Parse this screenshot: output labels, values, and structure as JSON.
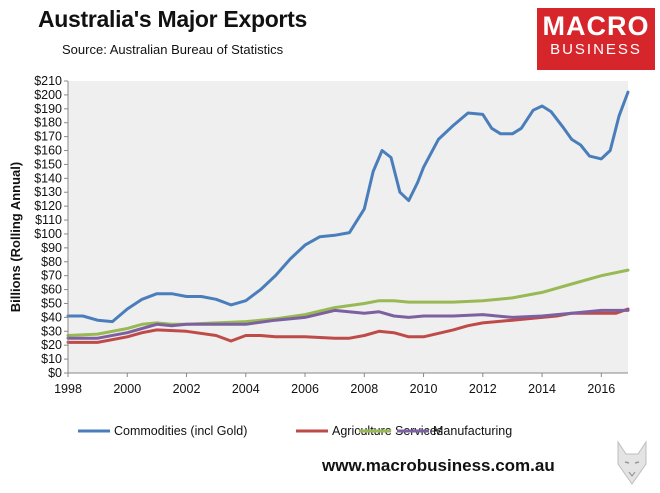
{
  "header": {
    "title": "Australia's Major Exports",
    "source": "Source: Australian Bureau of Statistics"
  },
  "logo": {
    "line1": "MACRO",
    "line2": "BUSINESS"
  },
  "footer": {
    "website": "www.macrobusiness.com.au"
  },
  "colors": {
    "commodities": "#4a7ebb",
    "agriculture": "#be4b48",
    "services": "#98b954",
    "manufacturing": "#7d60a0",
    "plot_bg": "#efefef",
    "brand": "#d7262b"
  },
  "chart_data": {
    "type": "line",
    "title": "Australia's Major Exports",
    "xlabel": "",
    "ylabel": "Billions (Rolling Annual)",
    "ylim": [
      0,
      210
    ],
    "xlim": [
      1998,
      2016.9
    ],
    "grid": false,
    "legend_position": "bottom",
    "y_ticks": [
      0,
      10,
      20,
      30,
      40,
      50,
      60,
      70,
      80,
      90,
      100,
      110,
      120,
      130,
      140,
      150,
      160,
      170,
      180,
      190,
      200,
      210
    ],
    "y_tick_labels": [
      "$0",
      "$10",
      "$20",
      "$30",
      "$40",
      "$50",
      "$60",
      "$70",
      "$80",
      "$90",
      "$100",
      "$110",
      "$120",
      "$130",
      "$140",
      "$150",
      "$160",
      "$170",
      "$180",
      "$190",
      "$200",
      "$210"
    ],
    "x_ticks": [
      1998,
      2000,
      2002,
      2004,
      2006,
      2008,
      2010,
      2012,
      2014,
      2016
    ],
    "x_tick_labels": [
      "1998",
      "2000",
      "2002",
      "2004",
      "2006",
      "2008",
      "2010",
      "2012",
      "2014",
      "2016"
    ],
    "series": [
      {
        "name": "Commodities (incl Gold)",
        "color": "#4a7ebb",
        "points": [
          [
            1998,
            41
          ],
          [
            1998.5,
            41
          ],
          [
            1999,
            38
          ],
          [
            1999.5,
            37
          ],
          [
            2000,
            46
          ],
          [
            2000.5,
            53
          ],
          [
            2001,
            57
          ],
          [
            2001.5,
            57
          ],
          [
            2002,
            55
          ],
          [
            2002.5,
            55
          ],
          [
            2003,
            53
          ],
          [
            2003.5,
            49
          ],
          [
            2004,
            52
          ],
          [
            2004.5,
            60
          ],
          [
            2005,
            70
          ],
          [
            2005.5,
            82
          ],
          [
            2006,
            92
          ],
          [
            2006.5,
            98
          ],
          [
            2007,
            99
          ],
          [
            2007.5,
            101
          ],
          [
            2008,
            118
          ],
          [
            2008.3,
            145
          ],
          [
            2008.6,
            160
          ],
          [
            2008.9,
            155
          ],
          [
            2009.2,
            130
          ],
          [
            2009.5,
            124
          ],
          [
            2009.8,
            137
          ],
          [
            2010,
            148
          ],
          [
            2010.5,
            168
          ],
          [
            2011,
            178
          ],
          [
            2011.5,
            187
          ],
          [
            2012,
            186
          ],
          [
            2012.3,
            176
          ],
          [
            2012.6,
            172
          ],
          [
            2013,
            172
          ],
          [
            2013.3,
            176
          ],
          [
            2013.7,
            189
          ],
          [
            2014,
            192
          ],
          [
            2014.3,
            188
          ],
          [
            2014.7,
            177
          ],
          [
            2015,
            168
          ],
          [
            2015.3,
            164
          ],
          [
            2015.6,
            156
          ],
          [
            2016,
            154
          ],
          [
            2016.3,
            160
          ],
          [
            2016.6,
            185
          ],
          [
            2016.9,
            202
          ]
        ]
      },
      {
        "name": "Agriculture",
        "color": "#be4b48",
        "points": [
          [
            1998,
            22
          ],
          [
            1999,
            22
          ],
          [
            2000,
            26
          ],
          [
            2000.5,
            29
          ],
          [
            2001,
            31
          ],
          [
            2002,
            30
          ],
          [
            2003,
            27
          ],
          [
            2003.5,
            23
          ],
          [
            2004,
            27
          ],
          [
            2004.5,
            27
          ],
          [
            2005,
            26
          ],
          [
            2006,
            26
          ],
          [
            2007,
            25
          ],
          [
            2007.5,
            25
          ],
          [
            2008,
            27
          ],
          [
            2008.5,
            30
          ],
          [
            2009,
            29
          ],
          [
            2009.5,
            26
          ],
          [
            2010,
            26
          ],
          [
            2011,
            31
          ],
          [
            2011.5,
            34
          ],
          [
            2012,
            36
          ],
          [
            2013,
            38
          ],
          [
            2014,
            40
          ],
          [
            2014.5,
            41
          ],
          [
            2015,
            43
          ],
          [
            2016,
            43
          ],
          [
            2016.5,
            43
          ],
          [
            2016.9,
            46
          ]
        ]
      },
      {
        "name": "Services",
        "color": "#98b954",
        "points": [
          [
            1998,
            27
          ],
          [
            1999,
            28
          ],
          [
            2000,
            32
          ],
          [
            2000.5,
            35
          ],
          [
            2001,
            36
          ],
          [
            2001.5,
            35
          ],
          [
            2002,
            35
          ],
          [
            2003,
            36
          ],
          [
            2004,
            37
          ],
          [
            2005,
            39
          ],
          [
            2006,
            42
          ],
          [
            2007,
            47
          ],
          [
            2008,
            50
          ],
          [
            2008.5,
            52
          ],
          [
            2009,
            52
          ],
          [
            2009.5,
            51
          ],
          [
            2010,
            51
          ],
          [
            2011,
            51
          ],
          [
            2012,
            52
          ],
          [
            2013,
            54
          ],
          [
            2014,
            58
          ],
          [
            2015,
            64
          ],
          [
            2016,
            70
          ],
          [
            2016.9,
            74
          ]
        ]
      },
      {
        "name": "Manufacturing",
        "color": "#7d60a0",
        "points": [
          [
            1998,
            25
          ],
          [
            1999,
            25
          ],
          [
            2000,
            29
          ],
          [
            2000.5,
            32
          ],
          [
            2001,
            35
          ],
          [
            2001.5,
            34
          ],
          [
            2002,
            35
          ],
          [
            2003,
            35
          ],
          [
            2004,
            35
          ],
          [
            2005,
            38
          ],
          [
            2006,
            40
          ],
          [
            2007,
            45
          ],
          [
            2008,
            43
          ],
          [
            2008.5,
            44
          ],
          [
            2009,
            41
          ],
          [
            2009.5,
            40
          ],
          [
            2010,
            41
          ],
          [
            2011,
            41
          ],
          [
            2012,
            42
          ],
          [
            2013,
            40
          ],
          [
            2014,
            41
          ],
          [
            2015,
            43
          ],
          [
            2016,
            45
          ],
          [
            2016.9,
            45
          ]
        ]
      }
    ]
  }
}
